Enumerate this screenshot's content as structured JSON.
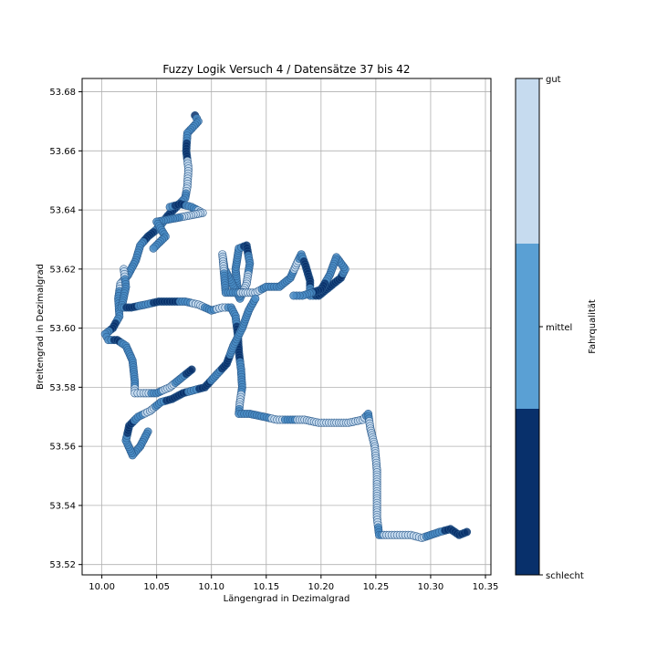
{
  "chart_data": {
    "type": "scatter",
    "title": "Fuzzy Logik Versuch 4 / Datensätze 37 bis 42",
    "xlabel": "Längengrad in Dezimalgrad",
    "ylabel": "Breitengrad in Dezimalgrad",
    "xlim": [
      9.982,
      10.355
    ],
    "ylim": [
      53.5165,
      53.6845
    ],
    "xticks": [
      "10.00",
      "10.05",
      "10.10",
      "10.15",
      "10.20",
      "10.25",
      "10.30",
      "10.35"
    ],
    "xtick_values": [
      10.0,
      10.05,
      10.1,
      10.15,
      10.2,
      10.25,
      10.3,
      10.35
    ],
    "yticks": [
      "53.52",
      "53.54",
      "53.56",
      "53.58",
      "53.60",
      "53.62",
      "53.64",
      "53.66",
      "53.68"
    ],
    "ytick_values": [
      53.52,
      53.54,
      53.56,
      53.58,
      53.6,
      53.62,
      53.64,
      53.66,
      53.68
    ],
    "grid": true,
    "marker_color_quality": "categorical quality per point: schlecht / mittel / gut",
    "track": [
      {
        "lon": 10.085,
        "lat": 53.672,
        "q": "schlecht"
      },
      {
        "lon": 10.088,
        "lat": 53.67,
        "q": "mittel"
      },
      {
        "lon": 10.078,
        "lat": 53.666,
        "q": "mittel"
      },
      {
        "lon": 10.077,
        "lat": 53.66,
        "q": "schlecht"
      },
      {
        "lon": 10.079,
        "lat": 53.654,
        "q": "gut"
      },
      {
        "lon": 10.078,
        "lat": 53.648,
        "q": "gut"
      },
      {
        "lon": 10.076,
        "lat": 53.644,
        "q": "mittel"
      },
      {
        "lon": 10.068,
        "lat": 53.641,
        "q": "schlecht"
      },
      {
        "lon": 10.06,
        "lat": 53.638,
        "q": "schlecht"
      },
      {
        "lon": 10.052,
        "lat": 53.634,
        "q": "mittel"
      },
      {
        "lon": 10.042,
        "lat": 53.631,
        "q": "schlecht"
      },
      {
        "lon": 10.035,
        "lat": 53.628,
        "q": "mittel"
      },
      {
        "lon": 10.031,
        "lat": 53.623,
        "q": "mittel"
      },
      {
        "lon": 10.024,
        "lat": 53.618,
        "q": "mittel"
      },
      {
        "lon": 10.017,
        "lat": 53.615,
        "q": "gut"
      },
      {
        "lon": 10.015,
        "lat": 53.61,
        "q": "mittel"
      },
      {
        "lon": 10.016,
        "lat": 53.604,
        "q": "mittel"
      },
      {
        "lon": 10.01,
        "lat": 53.6,
        "q": "schlecht"
      },
      {
        "lon": 10.003,
        "lat": 53.598,
        "q": "mittel"
      },
      {
        "lon": 10.006,
        "lat": 53.596,
        "q": "mittel"
      },
      {
        "lon": 10.014,
        "lat": 53.596,
        "q": "schlecht"
      },
      {
        "lon": 10.022,
        "lat": 53.594,
        "q": "mittel"
      },
      {
        "lon": 10.028,
        "lat": 53.589,
        "q": "mittel"
      },
      {
        "lon": 10.03,
        "lat": 53.582,
        "q": "mittel"
      },
      {
        "lon": 10.03,
        "lat": 53.578,
        "q": "gut"
      },
      {
        "lon": 10.038,
        "lat": 53.578,
        "q": "gut"
      },
      {
        "lon": 10.05,
        "lat": 53.578,
        "q": "mittel"
      },
      {
        "lon": 10.062,
        "lat": 53.58,
        "q": "gut"
      },
      {
        "lon": 10.072,
        "lat": 53.583,
        "q": "mittel"
      },
      {
        "lon": 10.082,
        "lat": 53.586,
        "q": "schlecht"
      },
      {
        "lon": 10.02,
        "lat": 53.62,
        "q": "gut"
      },
      {
        "lon": 10.022,
        "lat": 53.614,
        "q": "mittel"
      },
      {
        "lon": 10.018,
        "lat": 53.607,
        "q": "mittel"
      },
      {
        "lon": 10.027,
        "lat": 53.607,
        "q": "schlecht"
      },
      {
        "lon": 10.04,
        "lat": 53.608,
        "q": "mittel"
      },
      {
        "lon": 10.052,
        "lat": 53.609,
        "q": "schlecht"
      },
      {
        "lon": 10.064,
        "lat": 53.609,
        "q": "schlecht"
      },
      {
        "lon": 10.076,
        "lat": 53.609,
        "q": "mittel"
      },
      {
        "lon": 10.088,
        "lat": 53.608,
        "q": "gut"
      },
      {
        "lon": 10.1,
        "lat": 53.606,
        "q": "mittel"
      },
      {
        "lon": 10.11,
        "lat": 53.607,
        "q": "gut"
      },
      {
        "lon": 10.118,
        "lat": 53.607,
        "q": "mittel"
      },
      {
        "lon": 10.122,
        "lat": 53.604,
        "q": "mittel"
      },
      {
        "lon": 10.124,
        "lat": 53.598,
        "q": "schlecht"
      },
      {
        "lon": 10.125,
        "lat": 53.592,
        "q": "schlecht"
      },
      {
        "lon": 10.127,
        "lat": 53.586,
        "q": "mittel"
      },
      {
        "lon": 10.128,
        "lat": 53.58,
        "q": "mittel"
      },
      {
        "lon": 10.126,
        "lat": 53.575,
        "q": "gut"
      },
      {
        "lon": 10.125,
        "lat": 53.571,
        "q": "mittel"
      },
      {
        "lon": 10.135,
        "lat": 53.571,
        "q": "mittel"
      },
      {
        "lon": 10.148,
        "lat": 53.57,
        "q": "mittel"
      },
      {
        "lon": 10.16,
        "lat": 53.569,
        "q": "gut"
      },
      {
        "lon": 10.172,
        "lat": 53.569,
        "q": "mittel"
      },
      {
        "lon": 10.185,
        "lat": 53.569,
        "q": "gut"
      },
      {
        "lon": 10.198,
        "lat": 53.568,
        "q": "gut"
      },
      {
        "lon": 10.212,
        "lat": 53.568,
        "q": "gut"
      },
      {
        "lon": 10.225,
        "lat": 53.568,
        "q": "gut"
      },
      {
        "lon": 10.238,
        "lat": 53.569,
        "q": "gut"
      },
      {
        "lon": 10.243,
        "lat": 53.571,
        "q": "mittel"
      },
      {
        "lon": 10.245,
        "lat": 53.566,
        "q": "gut"
      },
      {
        "lon": 10.249,
        "lat": 53.56,
        "q": "gut"
      },
      {
        "lon": 10.251,
        "lat": 53.552,
        "q": "gut"
      },
      {
        "lon": 10.251,
        "lat": 53.544,
        "q": "gut"
      },
      {
        "lon": 10.251,
        "lat": 53.536,
        "q": "gut"
      },
      {
        "lon": 10.253,
        "lat": 53.53,
        "q": "mittel"
      },
      {
        "lon": 10.262,
        "lat": 53.53,
        "q": "gut"
      },
      {
        "lon": 10.272,
        "lat": 53.53,
        "q": "gut"
      },
      {
        "lon": 10.282,
        "lat": 53.53,
        "q": "gut"
      },
      {
        "lon": 10.292,
        "lat": 53.529,
        "q": "gut"
      },
      {
        "lon": 10.3,
        "lat": 53.53,
        "q": "mittel"
      },
      {
        "lon": 10.308,
        "lat": 53.531,
        "q": "mittel"
      },
      {
        "lon": 10.318,
        "lat": 53.532,
        "q": "schlecht"
      },
      {
        "lon": 10.326,
        "lat": 53.53,
        "q": "schlecht"
      },
      {
        "lon": 10.333,
        "lat": 53.531,
        "q": "schlecht"
      },
      {
        "lon": 10.124,
        "lat": 53.612,
        "q": "mittel"
      },
      {
        "lon": 10.122,
        "lat": 53.62,
        "q": "mittel"
      },
      {
        "lon": 10.125,
        "lat": 53.627,
        "q": "mittel"
      },
      {
        "lon": 10.132,
        "lat": 53.628,
        "q": "schlecht"
      },
      {
        "lon": 10.135,
        "lat": 53.622,
        "q": "mittel"
      },
      {
        "lon": 10.132,
        "lat": 53.615,
        "q": "gut"
      },
      {
        "lon": 10.126,
        "lat": 53.61,
        "q": "mittel"
      },
      {
        "lon": 10.112,
        "lat": 53.62,
        "q": "mittel"
      },
      {
        "lon": 10.11,
        "lat": 53.625,
        "q": "gut"
      },
      {
        "lon": 10.113,
        "lat": 53.612,
        "q": "mittel"
      },
      {
        "lon": 10.14,
        "lat": 53.612,
        "q": "gut"
      },
      {
        "lon": 10.15,
        "lat": 53.614,
        "q": "mittel"
      },
      {
        "lon": 10.162,
        "lat": 53.614,
        "q": "mittel"
      },
      {
        "lon": 10.172,
        "lat": 53.617,
        "q": "mittel"
      },
      {
        "lon": 10.178,
        "lat": 53.622,
        "q": "gut"
      },
      {
        "lon": 10.182,
        "lat": 53.625,
        "q": "mittel"
      },
      {
        "lon": 10.186,
        "lat": 53.621,
        "q": "schlecht"
      },
      {
        "lon": 10.19,
        "lat": 53.616,
        "q": "schlecht"
      },
      {
        "lon": 10.19,
        "lat": 53.611,
        "q": "mittel"
      },
      {
        "lon": 10.198,
        "lat": 53.611,
        "q": "schlecht"
      },
      {
        "lon": 10.208,
        "lat": 53.614,
        "q": "schlecht"
      },
      {
        "lon": 10.218,
        "lat": 53.617,
        "q": "schlecht"
      },
      {
        "lon": 10.222,
        "lat": 53.62,
        "q": "mittel"
      },
      {
        "lon": 10.214,
        "lat": 53.624,
        "q": "mittel"
      },
      {
        "lon": 10.208,
        "lat": 53.618,
        "q": "mittel"
      },
      {
        "lon": 10.2,
        "lat": 53.613,
        "q": "schlecht"
      },
      {
        "lon": 10.183,
        "lat": 53.611,
        "q": "mittel"
      },
      {
        "lon": 10.175,
        "lat": 53.611,
        "q": "mittel"
      },
      {
        "lon": 10.042,
        "lat": 53.565,
        "q": "mittel"
      },
      {
        "lon": 10.035,
        "lat": 53.56,
        "q": "mittel"
      },
      {
        "lon": 10.028,
        "lat": 53.557,
        "q": "mittel"
      },
      {
        "lon": 10.022,
        "lat": 53.562,
        "q": "mittel"
      },
      {
        "lon": 10.025,
        "lat": 53.567,
        "q": "schlecht"
      },
      {
        "lon": 10.033,
        "lat": 53.57,
        "q": "mittel"
      },
      {
        "lon": 10.044,
        "lat": 53.572,
        "q": "gut"
      },
      {
        "lon": 10.054,
        "lat": 53.575,
        "q": "mittel"
      },
      {
        "lon": 10.064,
        "lat": 53.576,
        "q": "schlecht"
      },
      {
        "lon": 10.074,
        "lat": 53.578,
        "q": "schlecht"
      },
      {
        "lon": 10.084,
        "lat": 53.579,
        "q": "mittel"
      },
      {
        "lon": 10.094,
        "lat": 53.58,
        "q": "schlecht"
      },
      {
        "lon": 10.104,
        "lat": 53.584,
        "q": "mittel"
      },
      {
        "lon": 10.114,
        "lat": 53.588,
        "q": "schlecht"
      },
      {
        "lon": 10.12,
        "lat": 53.594,
        "q": "mittel"
      },
      {
        "lon": 10.128,
        "lat": 53.6,
        "q": "mittel"
      },
      {
        "lon": 10.134,
        "lat": 53.606,
        "q": "mittel"
      },
      {
        "lon": 10.14,
        "lat": 53.61,
        "q": "mittel"
      },
      {
        "lon": 10.062,
        "lat": 53.641,
        "q": "mittel"
      },
      {
        "lon": 10.072,
        "lat": 53.642,
        "q": "schlecht"
      },
      {
        "lon": 10.082,
        "lat": 53.641,
        "q": "mittel"
      },
      {
        "lon": 10.092,
        "lat": 53.639,
        "q": "gut"
      },
      {
        "lon": 10.05,
        "lat": 53.636,
        "q": "mittel"
      },
      {
        "lon": 10.058,
        "lat": 53.631,
        "q": "mittel"
      },
      {
        "lon": 10.047,
        "lat": 53.627,
        "q": "mittel"
      }
    ]
  },
  "colorbar": {
    "label": "Fahrqualität",
    "ticks": [
      "gut",
      "mittel",
      "schlecht"
    ],
    "bands": [
      {
        "name": "gut",
        "color": "#c6dbef"
      },
      {
        "name": "mittel",
        "color": "#5aa0d4"
      },
      {
        "name": "schlecht",
        "color": "#08306b"
      }
    ]
  },
  "colors": {
    "schlecht": "#08306b",
    "mittel": "#4a8cc4",
    "gut": "#c6dbef",
    "grid": "#b0b0b0",
    "edge": "#2a5a8c"
  }
}
